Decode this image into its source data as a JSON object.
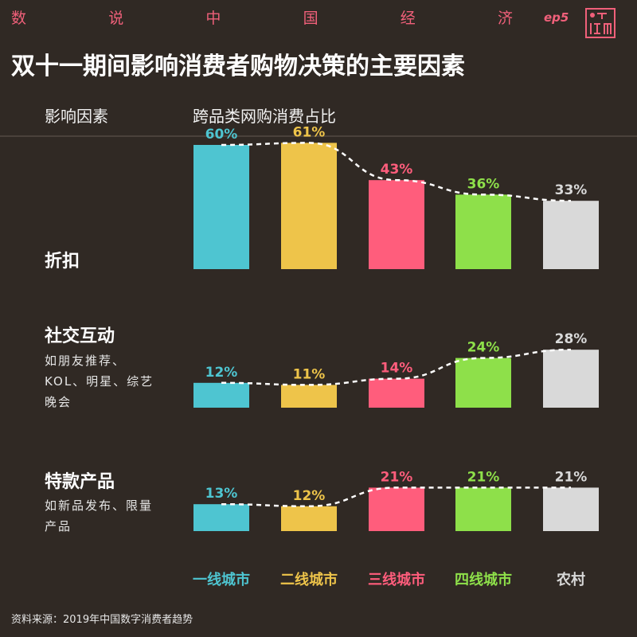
{
  "header": {
    "series_title_chars": [
      "数",
      "说",
      "中",
      "国",
      "经",
      "济"
    ],
    "episode": "ep5",
    "logo_text": "江南",
    "title": "双十一期间影响消费者购物决策的主要因素",
    "column_factor": "影响因素",
    "column_share": "跨品类网购消费占比"
  },
  "factors": [
    {
      "title": "折扣",
      "desc": ""
    },
    {
      "title": "社交互动",
      "desc": "如朋友推荐、KOL、明星、综艺晚会"
    },
    {
      "title": "特款产品",
      "desc": "如新品发布、限量产品"
    }
  ],
  "colors": {
    "background": "#302924",
    "accent": "#f0607a",
    "series": [
      "#4ec5d1",
      "#eec44a",
      "#ff5d7c",
      "#8ee04a",
      "#d9d9d9"
    ]
  },
  "chart_data": {
    "type": "bar",
    "categories": [
      "一线城市",
      "二线城市",
      "三线城市",
      "四线城市",
      "农村"
    ],
    "unit": "%",
    "panels": [
      {
        "factor": "折扣",
        "values": [
          60,
          61,
          43,
          36,
          33
        ],
        "labels": [
          "60%",
          "61%",
          "43%",
          "36%",
          "33%"
        ]
      },
      {
        "factor": "社交互动",
        "values": [
          12,
          11,
          14,
          24,
          28
        ],
        "labels": [
          "12%",
          "11%",
          "14%",
          "24%",
          "28%"
        ]
      },
      {
        "factor": "特款产品",
        "values": [
          13,
          12,
          21,
          21,
          21
        ],
        "labels": [
          "13%",
          "12%",
          "21%",
          "21%",
          "21%"
        ]
      }
    ],
    "trend_line": "dashed white line connecting bar tops",
    "grid": false,
    "legend": "none"
  },
  "source": "资料来源：2019年中国数字消费者趋势"
}
